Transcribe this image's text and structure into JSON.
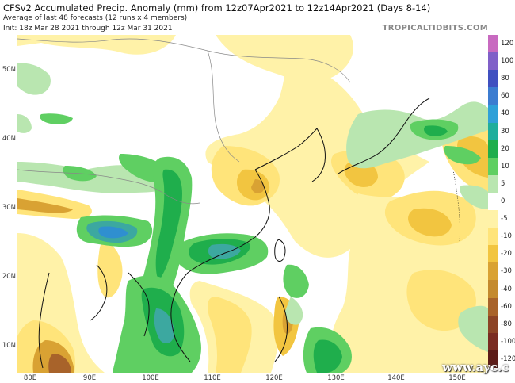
{
  "header": {
    "title": "CFSv2 Accumulated Precip. Anomaly (mm) from 12z07Apr2021 to 12z14Apr2021 (Days 8-14)",
    "subtitle": "Average of last 48 forecasts (12 runs x 4 members)",
    "init": "Init: 18z Mar 28 2021 through 12z Mar 31 2021",
    "credit": "TROPICALTIDBITS.COM"
  },
  "map": {
    "region": "East Asia",
    "lat_labels": [
      "50N",
      "40N",
      "30N",
      "20N",
      "10N"
    ],
    "lon_labels": [
      "80E",
      "90E",
      "100E",
      "110E",
      "120E",
      "130E",
      "140E",
      "150E"
    ],
    "colors": {
      "ocean_dry": "#fff2a8",
      "dry_light": "#ffe47a",
      "dry_medium": "#f2c540",
      "dry_strong": "#d9a233",
      "dry_brown": "#a8632a",
      "wet_light": "#b9e6b0",
      "wet_medium": "#5fcf62",
      "wet_strong": "#1fae4c",
      "wet_teal": "#3ca8a0",
      "wet_blue": "#2f8fd0",
      "coast": "#111111",
      "border": "#888888"
    }
  },
  "colorbar": {
    "labels": [
      "120",
      "100",
      "80",
      "60",
      "40",
      "30",
      "20",
      "10",
      "5",
      "0",
      "-5",
      "-10",
      "-20",
      "-30",
      "-40",
      "-60",
      "-80",
      "-100",
      "-120"
    ],
    "colors": [
      "#c86ac0",
      "#8060c8",
      "#4050c0",
      "#3c7cd0",
      "#2fa0d8",
      "#1fae9c",
      "#1fae4c",
      "#5fcf62",
      "#b9e6b0",
      "#ffffff",
      "#fff2a8",
      "#ffe47a",
      "#f2c540",
      "#d9a233",
      "#c48a2e",
      "#a8632a",
      "#8c4426",
      "#7a2c22",
      "#5c1c18"
    ]
  },
  "watermark": "www.ayc.c"
}
